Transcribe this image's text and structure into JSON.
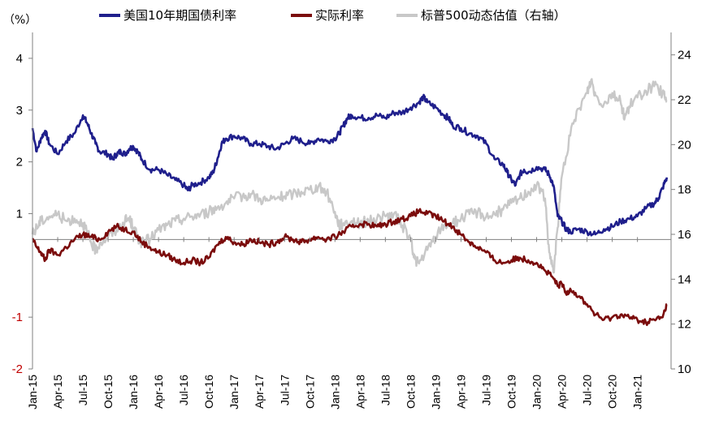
{
  "chart_data": {
    "type": "line",
    "title": "",
    "y_unit_label": "（%）",
    "y_left": {
      "ticks": [
        "4",
        "3",
        "2",
        "1",
        "-1",
        "-2"
      ],
      "tick_values": [
        4,
        3,
        2,
        1,
        -1,
        -2
      ],
      "range": [
        -2,
        4.5
      ]
    },
    "y_right": {
      "ticks": [
        "24",
        "22",
        "20",
        "18",
        "16",
        "14",
        "12",
        "10"
      ],
      "tick_values": [
        24,
        22,
        20,
        18,
        16,
        14,
        12,
        10
      ],
      "range": [
        10,
        25
      ]
    },
    "x_tick_labels": [
      "Jan-15",
      "Apr-15",
      "Jul-15",
      "Oct-15",
      "Jan-16",
      "Apr-16",
      "Jul-16",
      "Oct-16",
      "Jan-17",
      "Apr-17",
      "Jul-17",
      "Oct-17",
      "Jan-18",
      "Apr-18",
      "Jul-18",
      "Oct-18",
      "Jan-19",
      "Apr-19",
      "Jul-19",
      "Oct-19",
      "Jan-20",
      "Apr-20",
      "Jul-20",
      "Oct-20",
      "Jan-21"
    ],
    "x_range_months": [
      0,
      76
    ],
    "zero_line_at": 0.5,
    "legend_position": "top",
    "series": [
      {
        "name": "美国10年期国债利率",
        "axis": "left",
        "color": "#1f1f8c",
        "points": [
          [
            0,
            2.65
          ],
          [
            0.5,
            2.2
          ],
          [
            1,
            2.45
          ],
          [
            1.5,
            2.6
          ],
          [
            2,
            2.35
          ],
          [
            3,
            2.15
          ],
          [
            4,
            2.4
          ],
          [
            5,
            2.55
          ],
          [
            6,
            2.9
          ],
          [
            6.5,
            2.75
          ],
          [
            7,
            2.55
          ],
          [
            7.5,
            2.35
          ],
          [
            8,
            2.2
          ],
          [
            9,
            2.15
          ],
          [
            9.5,
            2.05
          ],
          [
            10,
            2.15
          ],
          [
            10.5,
            2.2
          ],
          [
            11,
            2.15
          ],
          [
            11.5,
            2.25
          ],
          [
            12,
            2.3
          ],
          [
            12.5,
            2.2
          ],
          [
            13,
            2.05
          ],
          [
            14,
            1.85
          ],
          [
            15,
            1.85
          ],
          [
            16,
            1.75
          ],
          [
            17,
            1.65
          ],
          [
            18,
            1.55
          ],
          [
            18.5,
            1.45
          ],
          [
            19,
            1.55
          ],
          [
            20,
            1.6
          ],
          [
            21,
            1.7
          ],
          [
            21.5,
            1.8
          ],
          [
            22,
            2.05
          ],
          [
            22.5,
            2.35
          ],
          [
            23,
            2.45
          ],
          [
            24,
            2.5
          ],
          [
            25,
            2.45
          ],
          [
            26,
            2.35
          ],
          [
            27,
            2.35
          ],
          [
            28,
            2.3
          ],
          [
            29,
            2.25
          ],
          [
            30,
            2.35
          ],
          [
            31,
            2.45
          ],
          [
            32,
            2.4
          ],
          [
            33,
            2.35
          ],
          [
            34,
            2.45
          ],
          [
            35,
            2.4
          ],
          [
            36,
            2.45
          ],
          [
            36.5,
            2.55
          ],
          [
            37,
            2.7
          ],
          [
            37.5,
            2.85
          ],
          [
            38,
            2.9
          ],
          [
            39,
            2.85
          ],
          [
            40,
            2.85
          ],
          [
            41,
            2.9
          ],
          [
            42,
            2.85
          ],
          [
            43,
            2.95
          ],
          [
            44,
            2.95
          ],
          [
            45,
            3.05
          ],
          [
            46,
            3.15
          ],
          [
            46.5,
            3.25
          ],
          [
            47,
            3.15
          ],
          [
            48,
            3.05
          ],
          [
            49,
            2.9
          ],
          [
            49.5,
            2.85
          ],
          [
            50,
            2.7
          ],
          [
            51,
            2.65
          ],
          [
            52,
            2.55
          ],
          [
            53,
            2.5
          ],
          [
            54,
            2.35
          ],
          [
            55,
            2.05
          ],
          [
            56,
            1.95
          ],
          [
            56.5,
            1.8
          ],
          [
            57,
            1.65
          ],
          [
            57.5,
            1.55
          ],
          [
            58,
            1.75
          ],
          [
            58.5,
            1.85
          ],
          [
            59,
            1.8
          ],
          [
            60,
            1.9
          ],
          [
            61,
            1.85
          ],
          [
            61.5,
            1.75
          ],
          [
            62,
            1.55
          ],
          [
            62.5,
            0.95
          ],
          [
            63,
            0.85
          ],
          [
            63.5,
            0.7
          ],
          [
            64,
            0.65
          ],
          [
            65,
            0.7
          ],
          [
            66,
            0.65
          ],
          [
            67,
            0.6
          ],
          [
            68,
            0.7
          ],
          [
            69,
            0.75
          ],
          [
            70,
            0.85
          ],
          [
            71,
            0.9
          ],
          [
            72,
            0.95
          ],
          [
            73,
            1.1
          ],
          [
            74,
            1.2
          ],
          [
            74.5,
            1.3
          ],
          [
            75,
            1.5
          ],
          [
            75.5,
            1.7
          ]
        ]
      },
      {
        "name": "实际利率",
        "axis": "left",
        "color": "#7b0c0c",
        "points": [
          [
            0,
            0.5
          ],
          [
            0.5,
            0.35
          ],
          [
            1,
            0.25
          ],
          [
            1.5,
            0.1
          ],
          [
            2,
            0.3
          ],
          [
            3,
            0.2
          ],
          [
            4,
            0.35
          ],
          [
            5,
            0.5
          ],
          [
            6,
            0.6
          ],
          [
            7,
            0.55
          ],
          [
            8,
            0.5
          ],
          [
            9,
            0.65
          ],
          [
            10,
            0.75
          ],
          [
            11,
            0.7
          ],
          [
            12,
            0.65
          ],
          [
            13,
            0.45
          ],
          [
            14,
            0.35
          ],
          [
            15,
            0.25
          ],
          [
            16,
            0.2
          ],
          [
            17,
            0.1
          ],
          [
            18,
            0.05
          ],
          [
            19,
            0.1
          ],
          [
            20,
            0.05
          ],
          [
            21,
            0.15
          ],
          [
            22,
            0.4
          ],
          [
            23,
            0.55
          ],
          [
            24,
            0.45
          ],
          [
            25,
            0.4
          ],
          [
            26,
            0.5
          ],
          [
            27,
            0.45
          ],
          [
            28,
            0.4
          ],
          [
            29,
            0.45
          ],
          [
            30,
            0.55
          ],
          [
            31,
            0.5
          ],
          [
            32,
            0.45
          ],
          [
            33,
            0.5
          ],
          [
            34,
            0.55
          ],
          [
            35,
            0.5
          ],
          [
            36,
            0.55
          ],
          [
            37,
            0.65
          ],
          [
            38,
            0.75
          ],
          [
            39,
            0.8
          ],
          [
            40,
            0.8
          ],
          [
            41,
            0.75
          ],
          [
            42,
            0.8
          ],
          [
            43,
            0.85
          ],
          [
            44,
            0.9
          ],
          [
            45,
            0.95
          ],
          [
            46,
            1.05
          ],
          [
            47,
            1.0
          ],
          [
            48,
            0.95
          ],
          [
            49,
            0.85
          ],
          [
            50,
            0.75
          ],
          [
            51,
            0.6
          ],
          [
            52,
            0.45
          ],
          [
            53,
            0.35
          ],
          [
            54,
            0.25
          ],
          [
            55,
            0.1
          ],
          [
            56,
            0.05
          ],
          [
            57,
            0.1
          ],
          [
            58,
            0.15
          ],
          [
            59,
            0.1
          ],
          [
            60,
            0.05
          ],
          [
            61,
            -0.1
          ],
          [
            62,
            -0.25
          ],
          [
            62.5,
            -0.4
          ],
          [
            63,
            -0.35
          ],
          [
            63.5,
            -0.55
          ],
          [
            64,
            -0.45
          ],
          [
            65,
            -0.6
          ],
          [
            66,
            -0.75
          ],
          [
            67,
            -0.95
          ],
          [
            68,
            -1.05
          ],
          [
            69,
            -1.0
          ],
          [
            70,
            -0.95
          ],
          [
            71,
            -1.0
          ],
          [
            72,
            -1.05
          ],
          [
            73,
            -1.1
          ],
          [
            74,
            -1.05
          ],
          [
            75,
            -1.0
          ],
          [
            75.5,
            -0.75
          ]
        ]
      },
      {
        "name": "标普500动态估值（右轴）",
        "axis": "right",
        "color": "#c8c8c8",
        "points": [
          [
            0,
            16.0
          ],
          [
            0.5,
            16.3
          ],
          [
            1,
            16.6
          ],
          [
            2,
            16.8
          ],
          [
            3,
            16.9
          ],
          [
            4,
            16.6
          ],
          [
            5,
            16.7
          ],
          [
            6,
            16.5
          ],
          [
            6.5,
            16.1
          ],
          [
            7,
            15.6
          ],
          [
            7.5,
            15.3
          ],
          [
            8,
            15.6
          ],
          [
            9,
            15.9
          ],
          [
            10,
            16.2
          ],
          [
            11,
            16.6
          ],
          [
            11.5,
            16.7
          ],
          [
            12,
            16.3
          ],
          [
            12.5,
            15.9
          ],
          [
            13,
            15.6
          ],
          [
            14,
            15.8
          ],
          [
            15,
            16.2
          ],
          [
            16,
            16.4
          ],
          [
            17,
            16.6
          ],
          [
            18,
            16.7
          ],
          [
            19,
            16.8
          ],
          [
            20,
            16.9
          ],
          [
            21,
            17.0
          ],
          [
            22,
            17.2
          ],
          [
            23,
            17.4
          ],
          [
            24,
            17.6
          ],
          [
            25,
            17.7
          ],
          [
            26,
            17.8
          ],
          [
            27,
            17.6
          ],
          [
            28,
            17.5
          ],
          [
            29,
            17.6
          ],
          [
            30,
            17.7
          ],
          [
            31,
            17.8
          ],
          [
            32,
            17.9
          ],
          [
            33,
            18.0
          ],
          [
            34,
            18.1
          ],
          [
            35,
            17.9
          ],
          [
            36,
            17.0
          ],
          [
            36.5,
            16.4
          ],
          [
            37,
            16.5
          ],
          [
            38,
            16.6
          ],
          [
            39,
            16.5
          ],
          [
            40,
            16.6
          ],
          [
            41,
            16.7
          ],
          [
            42,
            16.8
          ],
          [
            43,
            16.9
          ],
          [
            44,
            16.4
          ],
          [
            45,
            15.8
          ],
          [
            45.5,
            14.9
          ],
          [
            46,
            14.7
          ],
          [
            47,
            15.3
          ],
          [
            48,
            15.9
          ],
          [
            49,
            16.4
          ],
          [
            50,
            16.5
          ],
          [
            51,
            16.7
          ],
          [
            52,
            16.9
          ],
          [
            53,
            17.0
          ],
          [
            54,
            16.8
          ],
          [
            55,
            16.9
          ],
          [
            56,
            17.1
          ],
          [
            57,
            17.4
          ],
          [
            58,
            17.6
          ],
          [
            59,
            17.9
          ],
          [
            60,
            18.2
          ],
          [
            61,
            17.6
          ],
          [
            61.5,
            15.2
          ],
          [
            62,
            14.3
          ],
          [
            62.5,
            16.3
          ],
          [
            63,
            18.6
          ],
          [
            64,
            20.4
          ],
          [
            65,
            21.6
          ],
          [
            66,
            22.3
          ],
          [
            66.5,
            22.9
          ],
          [
            67,
            22.2
          ],
          [
            68,
            21.8
          ],
          [
            69,
            22.3
          ],
          [
            70,
            21.9
          ],
          [
            70.5,
            21.2
          ],
          [
            71,
            21.7
          ],
          [
            72,
            22.1
          ],
          [
            73,
            22.4
          ],
          [
            74,
            22.6
          ],
          [
            75,
            22.3
          ],
          [
            75.5,
            21.9
          ]
        ]
      }
    ]
  }
}
